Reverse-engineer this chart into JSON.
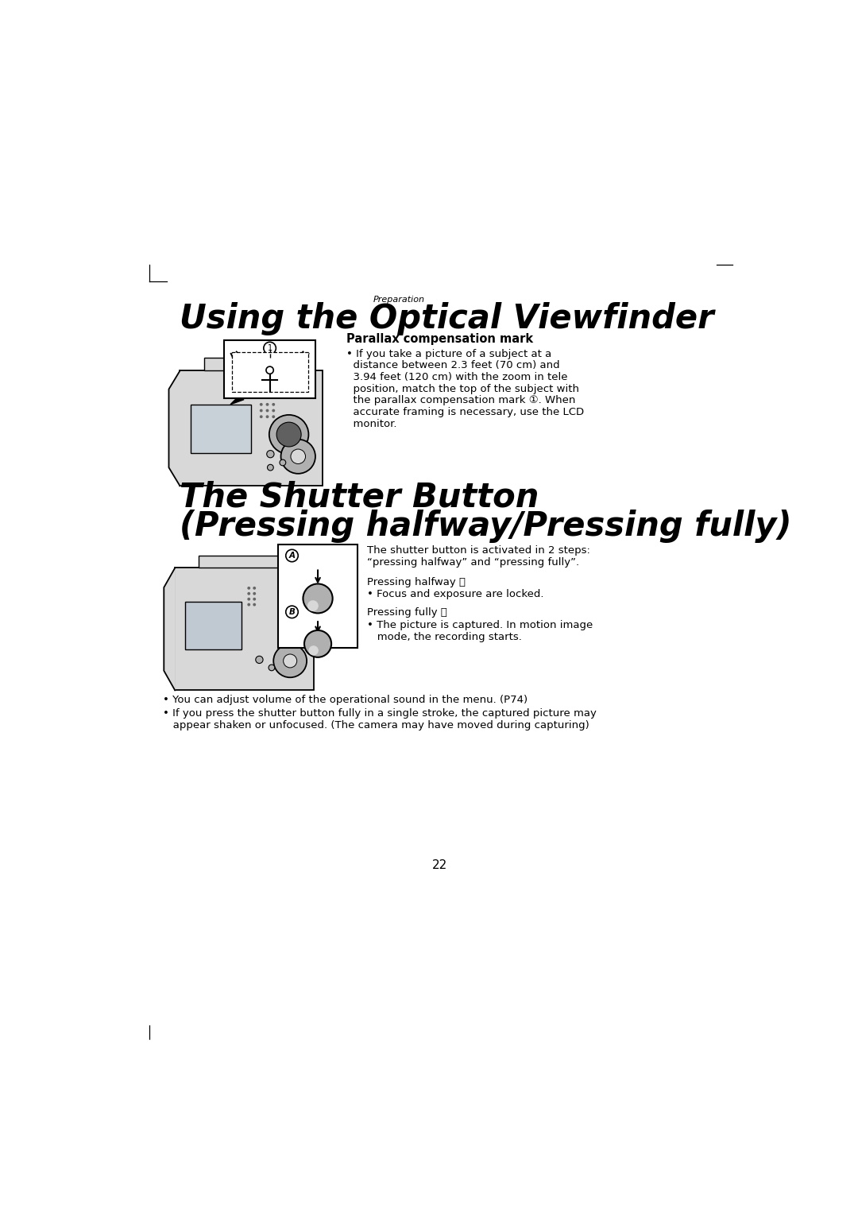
{
  "bg_color": "#ffffff",
  "section_label": "Preparation",
  "title1": "Using the Optical Viewfinder",
  "title2_line1": "The Shutter Button",
  "title2_line2": "(Pressing halfway/Pressing fully)",
  "parallax_heading": "Parallax compensation mark",
  "parallax_text_lines": [
    "• If you take a picture of a subject at a",
    "  distance between 2.3 feet (70 cm) and",
    "  3.94 feet (120 cm) with the zoom in tele",
    "  position, match the top of the subject with",
    "  the parallax compensation mark ①. When",
    "  accurate framing is necessary, use the LCD",
    "  monitor."
  ],
  "shutter_intro_line1": "The shutter button is activated in 2 steps:",
  "shutter_intro_line2": "“pressing halfway” and “pressing fully”.",
  "pressing_halfway_label": "Pressing halfway Ⓐ",
  "pressing_halfway_bullet": "• Focus and exposure are locked.",
  "pressing_fully_label": "Pressing fully Ⓑ",
  "pressing_fully_bullet1": "• The picture is captured. In motion image",
  "pressing_fully_bullet2": "   mode, the recording starts.",
  "footer1": "• You can adjust volume of the operational sound in the menu. (P74)",
  "footer2": "• If you press the shutter button fully in a single stroke, the captured picture may",
  "footer3": "   appear shaken or unfocused. (The camera may have moved during capturing)",
  "page_number": "22",
  "font_color": "#000000",
  "gray_light": "#d8d8d8",
  "gray_med": "#b0b0b0",
  "gray_dark": "#888888"
}
